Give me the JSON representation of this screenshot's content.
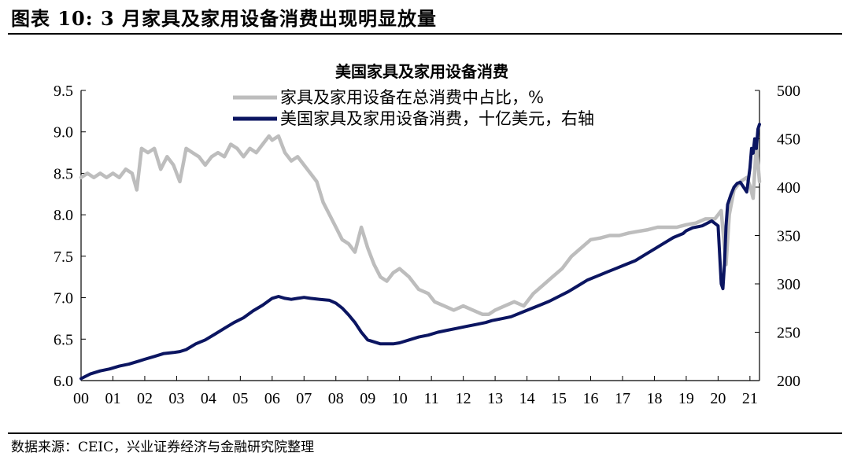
{
  "header": {
    "title": "图表 10:  3 月家具及家用设备消费出现明显放量"
  },
  "footer": {
    "source": "数据来源：CEIC，兴业证券经济与金融研究院整理"
  },
  "chart_data": {
    "type": "line",
    "title": "美国家具及家用设备消费",
    "x_ticks": [
      "00",
      "01",
      "02",
      "03",
      "04",
      "05",
      "06",
      "07",
      "08",
      "09",
      "10",
      "11",
      "12",
      "13",
      "14",
      "15",
      "16",
      "17",
      "18",
      "19",
      "20",
      "21"
    ],
    "xlim": [
      2000.0,
      2021.3
    ],
    "y_left": {
      "lim": [
        6.0,
        9.5
      ],
      "ticks": [
        "6.0",
        "6.5",
        "7.0",
        "7.5",
        "8.0",
        "8.5",
        "9.0",
        "9.5"
      ]
    },
    "y_right": {
      "lim": [
        200,
        500
      ],
      "ticks": [
        "200",
        "250",
        "300",
        "350",
        "400",
        "450",
        "500"
      ]
    },
    "legend_position": "top-left",
    "grid": false,
    "series": [
      {
        "name": "家具及家用设备在总消费中占比，%",
        "axis": "left",
        "color": "#bdbdbd",
        "x": [
          2000.0,
          2000.2,
          2000.4,
          2000.6,
          2000.8,
          2001.0,
          2001.2,
          2001.4,
          2001.6,
          2001.75,
          2001.9,
          2002.1,
          2002.3,
          2002.5,
          2002.7,
          2002.9,
          2003.1,
          2003.3,
          2003.5,
          2003.7,
          2003.9,
          2004.1,
          2004.3,
          2004.5,
          2004.7,
          2004.9,
          2005.1,
          2005.3,
          2005.5,
          2005.7,
          2005.9,
          2006.0,
          2006.2,
          2006.4,
          2006.6,
          2006.8,
          2007.0,
          2007.2,
          2007.4,
          2007.6,
          2007.8,
          2008.0,
          2008.2,
          2008.4,
          2008.6,
          2008.8,
          2009.0,
          2009.2,
          2009.4,
          2009.6,
          2009.8,
          2010.0,
          2010.3,
          2010.6,
          2010.9,
          2011.1,
          2011.4,
          2011.7,
          2012.0,
          2012.3,
          2012.6,
          2012.8,
          2013.0,
          2013.3,
          2013.6,
          2013.9,
          2014.2,
          2014.5,
          2014.8,
          2015.1,
          2015.4,
          2015.7,
          2016.0,
          2016.3,
          2016.6,
          2016.9,
          2017.2,
          2017.5,
          2017.8,
          2018.1,
          2018.4,
          2018.7,
          2019.0,
          2019.3,
          2019.6,
          2019.9,
          2020.0,
          2020.1,
          2020.2,
          2020.25,
          2020.35,
          2020.5,
          2020.7,
          2020.9,
          2021.0,
          2021.1,
          2021.2,
          2021.3
        ],
        "values": [
          8.45,
          8.5,
          8.45,
          8.5,
          8.45,
          8.5,
          8.45,
          8.55,
          8.5,
          8.3,
          8.8,
          8.75,
          8.8,
          8.55,
          8.7,
          8.6,
          8.4,
          8.8,
          8.75,
          8.7,
          8.6,
          8.7,
          8.75,
          8.7,
          8.85,
          8.8,
          8.7,
          8.8,
          8.75,
          8.85,
          8.95,
          8.9,
          8.95,
          8.75,
          8.65,
          8.7,
          8.6,
          8.5,
          8.4,
          8.15,
          8.0,
          7.85,
          7.7,
          7.65,
          7.55,
          7.85,
          7.6,
          7.4,
          7.25,
          7.2,
          7.3,
          7.35,
          7.25,
          7.1,
          7.05,
          6.95,
          6.9,
          6.85,
          6.9,
          6.85,
          6.8,
          6.8,
          6.85,
          6.9,
          6.95,
          6.9,
          7.05,
          7.15,
          7.25,
          7.35,
          7.5,
          7.6,
          7.7,
          7.72,
          7.75,
          7.75,
          7.78,
          7.8,
          7.82,
          7.85,
          7.85,
          7.85,
          7.88,
          7.9,
          7.95,
          7.95,
          8.0,
          8.05,
          7.6,
          7.4,
          8.0,
          8.3,
          8.4,
          8.45,
          8.35,
          8.2,
          8.85,
          8.4
        ]
      },
      {
        "name": "美国家具及家用设备消费，十亿美元，右轴",
        "axis": "right",
        "color": "#0b1561",
        "x": [
          2000.0,
          2000.3,
          2000.6,
          2000.9,
          2001.2,
          2001.5,
          2001.8,
          2002.0,
          2002.3,
          2002.6,
          2002.9,
          2003.1,
          2003.3,
          2003.6,
          2003.9,
          2004.2,
          2004.5,
          2004.8,
          2005.1,
          2005.4,
          2005.7,
          2006.0,
          2006.2,
          2006.4,
          2006.6,
          2006.8,
          2007.0,
          2007.2,
          2007.5,
          2007.8,
          2008.0,
          2008.2,
          2008.4,
          2008.6,
          2008.8,
          2009.0,
          2009.2,
          2009.4,
          2009.6,
          2009.8,
          2010.0,
          2010.3,
          2010.6,
          2010.9,
          2011.2,
          2011.5,
          2011.8,
          2012.1,
          2012.4,
          2012.7,
          2012.9,
          2013.2,
          2013.5,
          2013.8,
          2014.1,
          2014.4,
          2014.7,
          2015.0,
          2015.3,
          2015.6,
          2015.9,
          2016.2,
          2016.5,
          2016.8,
          2017.1,
          2017.4,
          2017.7,
          2018.0,
          2018.3,
          2018.6,
          2018.9,
          2019.0,
          2019.2,
          2019.5,
          2019.8,
          2020.0,
          2020.1,
          2020.15,
          2020.2,
          2020.25,
          2020.3,
          2020.4,
          2020.5,
          2020.6,
          2020.7,
          2020.8,
          2020.9,
          2021.0,
          2021.05,
          2021.1,
          2021.15,
          2021.2,
          2021.25,
          2021.3
        ],
        "values": [
          202,
          207,
          210,
          212,
          215,
          217,
          220,
          222,
          225,
          228,
          229,
          230,
          232,
          238,
          242,
          248,
          254,
          260,
          265,
          272,
          278,
          285,
          287,
          285,
          284,
          285,
          286,
          285,
          284,
          283,
          280,
          275,
          268,
          260,
          250,
          242,
          240,
          238,
          238,
          238,
          239,
          242,
          245,
          247,
          250,
          252,
          254,
          256,
          258,
          260,
          262,
          264,
          266,
          270,
          274,
          278,
          282,
          287,
          292,
          298,
          304,
          308,
          312,
          316,
          320,
          324,
          330,
          336,
          342,
          348,
          352,
          355,
          358,
          360,
          365,
          360,
          300,
          295,
          320,
          360,
          382,
          392,
          400,
          404,
          405,
          400,
          395,
          420,
          440,
          435,
          450,
          440,
          460,
          465
        ]
      }
    ]
  }
}
